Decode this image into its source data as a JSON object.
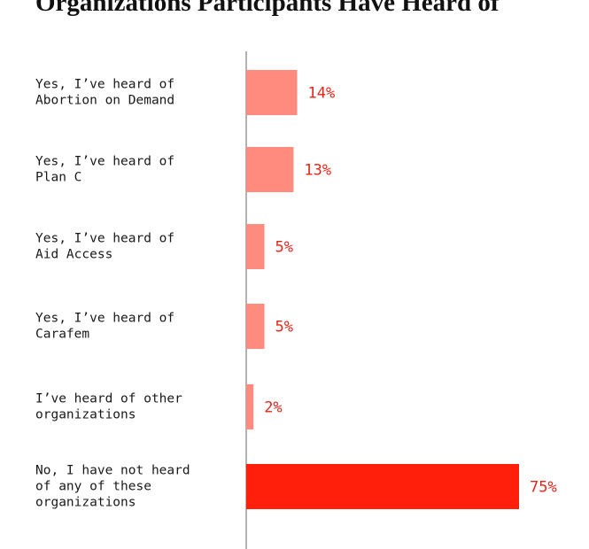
{
  "chart_data": {
    "type": "bar",
    "orientation": "horizontal",
    "title": "Organizations Participants Have Heard of",
    "categories": [
      [
        "Yes, I’ve heard of",
        "Abortion on Demand"
      ],
      [
        "Yes, I’ve heard of",
        "Plan C"
      ],
      [
        "Yes, I’ve heard of",
        "Aid Access"
      ],
      [
        "Yes, I’ve heard of",
        "Carafem"
      ],
      [
        "I’ve heard of other",
        "organizations"
      ],
      [
        "No, I have not heard",
        "of any of these",
        "organizations"
      ]
    ],
    "values": [
      14,
      13,
      5,
      5,
      2,
      75
    ],
    "value_labels": [
      "14%",
      "13%",
      "5%",
      "5%",
      "2%",
      "75%"
    ],
    "unit": "%",
    "xlim": [
      0,
      75
    ],
    "colors": [
      "#ff8a7e",
      "#ff8a7e",
      "#ff8a7e",
      "#ff8a7e",
      "#ff8a7e",
      "#ff1f0a"
    ],
    "label_color": "#e3261b",
    "axis_color": "#999999",
    "grid": false
  }
}
